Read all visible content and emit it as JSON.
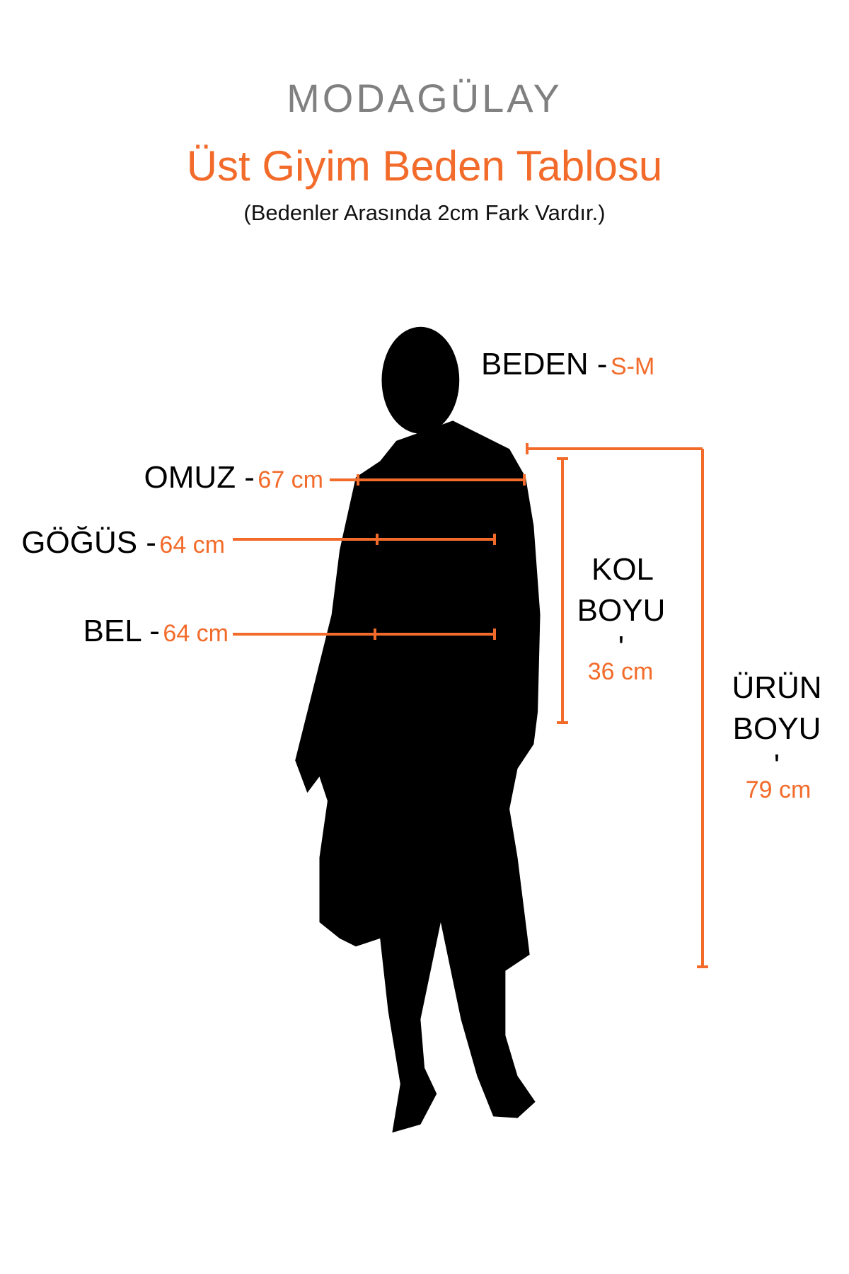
{
  "brand": {
    "logo": "MODAGÜLAY"
  },
  "header": {
    "title": "Üst Giyim Beden Tablosu",
    "subtitle": "(Bedenler Arasında 2cm Fark Vardır.)"
  },
  "size": {
    "label": "BEDEN -",
    "value": "S-M"
  },
  "measurements": {
    "shoulder": {
      "label": "OMUZ -",
      "value": "67 cm"
    },
    "chest": {
      "label": "GÖĞÜS -",
      "value": "64 cm"
    },
    "waist": {
      "label": "BEL -",
      "value": "64 cm"
    },
    "sleeve": {
      "label_line1": "KOL",
      "label_line2": "BOYU",
      "separator": "'",
      "value": "36 cm"
    },
    "length": {
      "label_line1": "ÜRÜN",
      "label_line2": "BOYU",
      "separator": "'",
      "value": "79 cm"
    }
  },
  "colors": {
    "accent": "#f26b2a",
    "logo": "#808080",
    "silhouette": "#000000"
  }
}
